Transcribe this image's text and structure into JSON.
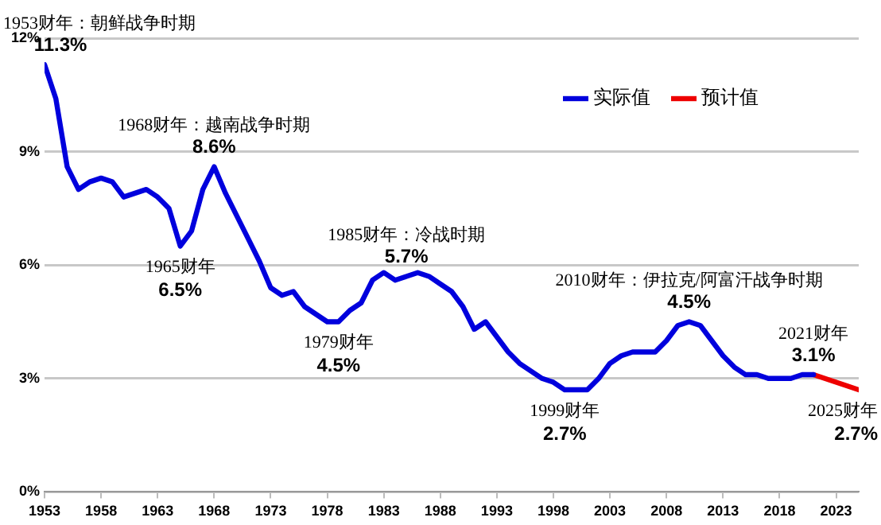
{
  "chart_data": {
    "type": "line",
    "xlim": [
      1953,
      2025
    ],
    "xticks": [
      1953,
      1958,
      1963,
      1968,
      1973,
      1978,
      1983,
      1988,
      1993,
      1998,
      2003,
      2008,
      2013,
      2018,
      2023
    ],
    "ylim": [
      0,
      12
    ],
    "yticks": [
      {
        "value": 0,
        "label": "0%"
      },
      {
        "value": 3,
        "label": "3%"
      },
      {
        "value": 6,
        "label": "6%"
      },
      {
        "value": 9,
        "label": "9%"
      },
      {
        "value": 12,
        "label": "12%"
      }
    ],
    "grid": "y",
    "legend": "top right",
    "series": [
      {
        "name": "实际值",
        "color": "#0000dd",
        "x": [
          1953,
          1954,
          1955,
          1956,
          1957,
          1958,
          1959,
          1960,
          1961,
          1962,
          1963,
          1964,
          1965,
          1966,
          1967,
          1968,
          1969,
          1970,
          1971,
          1972,
          1973,
          1974,
          1975,
          1976,
          1977,
          1978,
          1979,
          1980,
          1981,
          1982,
          1983,
          1984,
          1985,
          1986,
          1987,
          1988,
          1989,
          1990,
          1991,
          1992,
          1993,
          1994,
          1995,
          1996,
          1997,
          1998,
          1999,
          2000,
          2001,
          2002,
          2003,
          2004,
          2005,
          2006,
          2007,
          2008,
          2009,
          2010,
          2011,
          2012,
          2013,
          2014,
          2015,
          2016,
          2017,
          2018,
          2019,
          2020,
          2021
        ],
        "values": [
          11.3,
          10.4,
          8.6,
          8.0,
          8.2,
          8.3,
          8.2,
          7.8,
          7.9,
          8.0,
          7.8,
          7.5,
          6.5,
          6.9,
          8.0,
          8.6,
          7.9,
          7.3,
          6.7,
          6.1,
          5.4,
          5.2,
          5.3,
          4.9,
          4.7,
          4.5,
          4.5,
          4.8,
          5.0,
          5.6,
          5.8,
          5.6,
          5.7,
          5.8,
          5.7,
          5.5,
          5.3,
          4.9,
          4.3,
          4.5,
          4.1,
          3.7,
          3.4,
          3.2,
          3.0,
          2.9,
          2.7,
          2.7,
          2.7,
          3.0,
          3.4,
          3.6,
          3.7,
          3.7,
          3.7,
          4.0,
          4.4,
          4.5,
          4.4,
          4.0,
          3.6,
          3.3,
          3.1,
          3.1,
          3.0,
          3.0,
          3.0,
          3.1,
          3.1
        ],
        "value_labels": [
          "11.3%",
          null,
          null,
          null,
          null,
          null,
          null,
          null,
          null,
          null,
          null,
          null,
          "6.5%",
          null,
          null,
          "8.6%",
          null,
          null,
          null,
          null,
          null,
          null,
          null,
          null,
          null,
          null,
          "4.5%",
          null,
          null,
          null,
          null,
          null,
          "5.7%",
          null,
          null,
          null,
          null,
          null,
          null,
          null,
          null,
          null,
          null,
          null,
          null,
          null,
          "2.7%",
          null,
          null,
          null,
          null,
          null,
          null,
          null,
          null,
          null,
          null,
          "4.5%",
          null,
          null,
          null,
          null,
          null,
          null,
          null,
          null,
          null,
          null,
          null
        ]
      },
      {
        "name": "预计值",
        "color": "#ee0000",
        "x": [
          2021,
          2022,
          2023,
          2024,
          2025
        ],
        "values": [
          3.1,
          3.0,
          2.9,
          2.8,
          2.7
        ],
        "value_labels": [
          "3.1%",
          null,
          null,
          null,
          "2.7%"
        ]
      }
    ],
    "annotations": [
      {
        "text": "1953财年：朝鲜战争时期",
        "x": 1953,
        "y": 11.3
      },
      {
        "text": "1965财年",
        "x": 1965,
        "y": 6.5
      },
      {
        "text": "1968财年：越南战争时期",
        "x": 1968,
        "y": 8.6
      },
      {
        "text": "1979财年",
        "x": 1979,
        "y": 4.5
      },
      {
        "text": "1985财年：冷战时期",
        "x": 1985,
        "y": 5.7
      },
      {
        "text": "1999财年",
        "x": 1999,
        "y": 2.7
      },
      {
        "text": "2010财年：伊拉克/阿富汗战争时期",
        "x": 2010,
        "y": 4.5
      },
      {
        "text": "2021财年",
        "x": 2021,
        "y": 3.1
      },
      {
        "text": "2025财年",
        "x": 2025,
        "y": 2.7
      }
    ]
  }
}
